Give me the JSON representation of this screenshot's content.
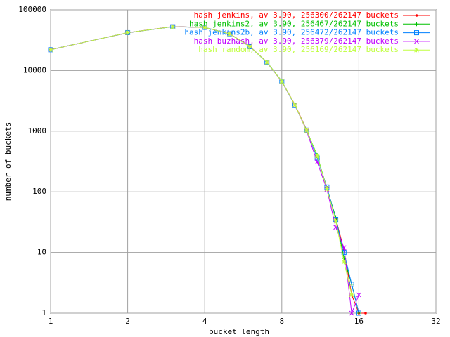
{
  "chart_data": {
    "type": "line",
    "x": [
      1,
      2,
      3,
      4,
      5,
      6,
      7,
      8,
      9,
      10,
      11,
      12,
      13,
      14,
      15,
      16,
      17
    ],
    "series": [
      {
        "name": "hash jenkins, av 3.90, 256300/262147 buckets",
        "color": "#ff0000",
        "marker": "circle",
        "values": [
          22000,
          42000,
          53000,
          51000,
          40500,
          25000,
          13700,
          6600,
          2750,
          1050,
          380,
          118,
          36,
          11,
          2,
          1,
          1
        ]
      },
      {
        "name": "hash jenkins2, av 3.90, 256467/262147 buckets",
        "color": "#00c000",
        "marker": "plus",
        "values": [
          22100,
          41800,
          52800,
          51200,
          40200,
          24800,
          13800,
          6650,
          2700,
          1030,
          400,
          115,
          38,
          8,
          3,
          1,
          null
        ]
      },
      {
        "name": "hash jenkins2b, av 3.90, 256472/262147 buckets",
        "color": "#0080ff",
        "marker": "square",
        "values": [
          22000,
          42100,
          52500,
          51300,
          40300,
          24700,
          13600,
          6600,
          2650,
          1040,
          360,
          120,
          35,
          10,
          3,
          1,
          null
        ]
      },
      {
        "name": "hash buzhash, av 3.90, 256379/262147 buckets",
        "color": "#c000ff",
        "marker": "cross",
        "values": [
          22050,
          41900,
          52900,
          51100,
          40400,
          24900,
          13700,
          6550,
          2700,
          1010,
          310,
          110,
          26,
          12,
          1,
          2,
          null
        ]
      },
      {
        "name": "hash random, av 3.90, 256169/262147 buckets",
        "color": "#c0ff40",
        "marker": "star",
        "values": [
          22000,
          42000,
          52700,
          51200,
          40300,
          24800,
          13700,
          6600,
          2720,
          1020,
          390,
          113,
          33,
          7,
          2,
          null,
          null
        ]
      }
    ],
    "x_label": "bucket length",
    "y_label": "number of buckets",
    "xscale": "log",
    "yscale": "log",
    "xlim": [
      1,
      32
    ],
    "xticks": [
      1,
      2,
      4,
      8,
      16,
      32
    ],
    "ylim": [
      1,
      100000
    ],
    "yticks": [
      1,
      10,
      100,
      1000,
      10000,
      100000
    ],
    "grid": true,
    "legend": "top-right"
  }
}
